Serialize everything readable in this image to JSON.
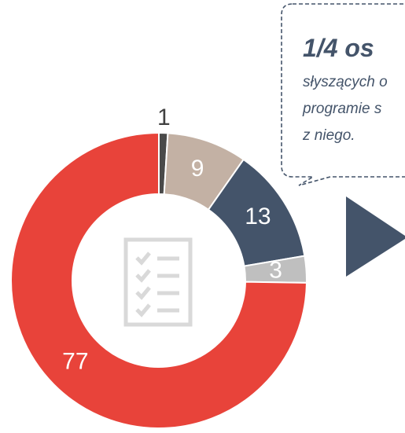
{
  "chart_data": {
    "type": "donut",
    "values": [
      1,
      9,
      13,
      3,
      77
    ],
    "colors": [
      "#4a4a4a",
      "#c3b1a4",
      "#44546a",
      "#bfbfbf",
      "#e8433a"
    ]
  },
  "callout": {
    "title": "1/4 os",
    "lines": [
      "słyszących o",
      "programie s",
      "z niego."
    ]
  }
}
